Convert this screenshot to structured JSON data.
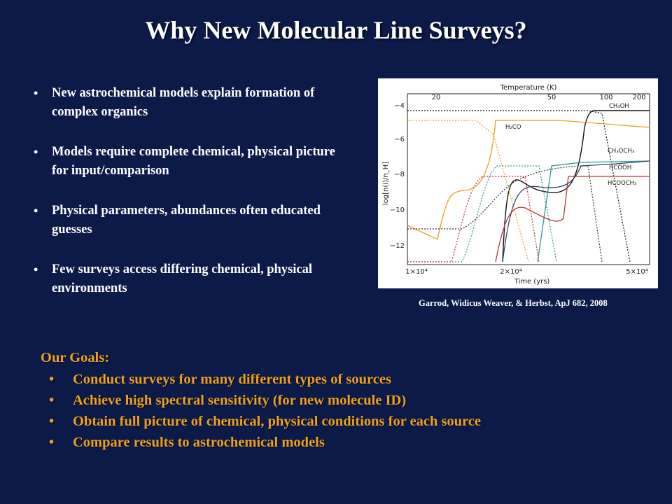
{
  "title": "Why New Molecular Line Surveys?",
  "bullets": [
    "New astrochemical models explain formation of complex organics",
    "Models require complete chemical, physical picture for input/comparison",
    "Physical parameters, abundances often educated guesses",
    "Few surveys access differing chemical, physical environments"
  ],
  "caption": "Garrod, Widicus Weaver, & Herbst, ApJ 682, 2008",
  "goals": {
    "heading": "Our Goals:",
    "items": [
      "Conduct surveys for many different types of sources",
      "Achieve high spectral sensitivity (for new molecule ID)",
      "Obtain full picture of chemical, physical conditions for each source",
      "Compare results to astrochemical models"
    ]
  },
  "colors": {
    "background": "#0b1a47",
    "goals_text": "#f0a020",
    "body_text": "#ffffff"
  },
  "chart_data": {
    "type": "line",
    "xlabel": "Time (yrs)",
    "ylabel": "log[n(i)/n_H]",
    "top_axis_label": "Temperature (K)",
    "x_ticks": [
      "1×10⁴",
      "2×10⁴",
      "5×10⁴"
    ],
    "top_ticks": [
      "20",
      "50",
      "100",
      "200"
    ],
    "y_ticks": [
      "−4",
      "−6",
      "−8",
      "−10",
      "−12"
    ],
    "ylim": [
      -13.5,
      -3.5
    ],
    "series_labels": [
      "CH₃OH",
      "H₂CO",
      "CH₃OCH₃",
      "HCOOH",
      "HCOOCH₃"
    ]
  }
}
